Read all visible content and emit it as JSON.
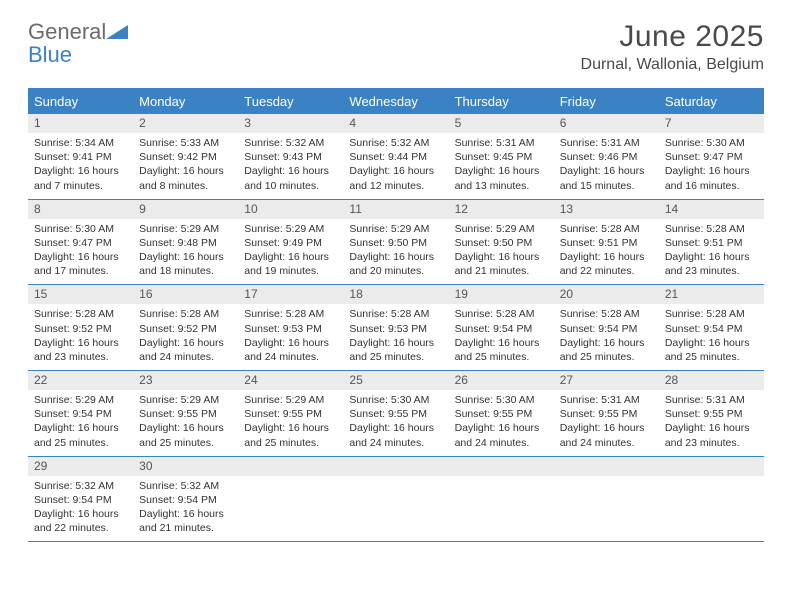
{
  "logo": {
    "word1": "General",
    "word2": "Blue"
  },
  "header": {
    "title": "June 2025",
    "location": "Durnal, Wallonia, Belgium"
  },
  "colors": {
    "accent": "#3b82c4",
    "header_bg": "#3b82c4",
    "daynum_bg": "#ebebeb"
  },
  "weekdays": [
    "Sunday",
    "Monday",
    "Tuesday",
    "Wednesday",
    "Thursday",
    "Friday",
    "Saturday"
  ],
  "weeks": [
    [
      {
        "n": "1",
        "sunrise": "Sunrise: 5:34 AM",
        "sunset": "Sunset: 9:41 PM",
        "day1": "Daylight: 16 hours",
        "day2": "and 7 minutes."
      },
      {
        "n": "2",
        "sunrise": "Sunrise: 5:33 AM",
        "sunset": "Sunset: 9:42 PM",
        "day1": "Daylight: 16 hours",
        "day2": "and 8 minutes."
      },
      {
        "n": "3",
        "sunrise": "Sunrise: 5:32 AM",
        "sunset": "Sunset: 9:43 PM",
        "day1": "Daylight: 16 hours",
        "day2": "and 10 minutes."
      },
      {
        "n": "4",
        "sunrise": "Sunrise: 5:32 AM",
        "sunset": "Sunset: 9:44 PM",
        "day1": "Daylight: 16 hours",
        "day2": "and 12 minutes."
      },
      {
        "n": "5",
        "sunrise": "Sunrise: 5:31 AM",
        "sunset": "Sunset: 9:45 PM",
        "day1": "Daylight: 16 hours",
        "day2": "and 13 minutes."
      },
      {
        "n": "6",
        "sunrise": "Sunrise: 5:31 AM",
        "sunset": "Sunset: 9:46 PM",
        "day1": "Daylight: 16 hours",
        "day2": "and 15 minutes."
      },
      {
        "n": "7",
        "sunrise": "Sunrise: 5:30 AM",
        "sunset": "Sunset: 9:47 PM",
        "day1": "Daylight: 16 hours",
        "day2": "and 16 minutes."
      }
    ],
    [
      {
        "n": "8",
        "sunrise": "Sunrise: 5:30 AM",
        "sunset": "Sunset: 9:47 PM",
        "day1": "Daylight: 16 hours",
        "day2": "and 17 minutes."
      },
      {
        "n": "9",
        "sunrise": "Sunrise: 5:29 AM",
        "sunset": "Sunset: 9:48 PM",
        "day1": "Daylight: 16 hours",
        "day2": "and 18 minutes."
      },
      {
        "n": "10",
        "sunrise": "Sunrise: 5:29 AM",
        "sunset": "Sunset: 9:49 PM",
        "day1": "Daylight: 16 hours",
        "day2": "and 19 minutes."
      },
      {
        "n": "11",
        "sunrise": "Sunrise: 5:29 AM",
        "sunset": "Sunset: 9:50 PM",
        "day1": "Daylight: 16 hours",
        "day2": "and 20 minutes."
      },
      {
        "n": "12",
        "sunrise": "Sunrise: 5:29 AM",
        "sunset": "Sunset: 9:50 PM",
        "day1": "Daylight: 16 hours",
        "day2": "and 21 minutes."
      },
      {
        "n": "13",
        "sunrise": "Sunrise: 5:28 AM",
        "sunset": "Sunset: 9:51 PM",
        "day1": "Daylight: 16 hours",
        "day2": "and 22 minutes."
      },
      {
        "n": "14",
        "sunrise": "Sunrise: 5:28 AM",
        "sunset": "Sunset: 9:51 PM",
        "day1": "Daylight: 16 hours",
        "day2": "and 23 minutes."
      }
    ],
    [
      {
        "n": "15",
        "sunrise": "Sunrise: 5:28 AM",
        "sunset": "Sunset: 9:52 PM",
        "day1": "Daylight: 16 hours",
        "day2": "and 23 minutes."
      },
      {
        "n": "16",
        "sunrise": "Sunrise: 5:28 AM",
        "sunset": "Sunset: 9:52 PM",
        "day1": "Daylight: 16 hours",
        "day2": "and 24 minutes."
      },
      {
        "n": "17",
        "sunrise": "Sunrise: 5:28 AM",
        "sunset": "Sunset: 9:53 PM",
        "day1": "Daylight: 16 hours",
        "day2": "and 24 minutes."
      },
      {
        "n": "18",
        "sunrise": "Sunrise: 5:28 AM",
        "sunset": "Sunset: 9:53 PM",
        "day1": "Daylight: 16 hours",
        "day2": "and 25 minutes."
      },
      {
        "n": "19",
        "sunrise": "Sunrise: 5:28 AM",
        "sunset": "Sunset: 9:54 PM",
        "day1": "Daylight: 16 hours",
        "day2": "and 25 minutes."
      },
      {
        "n": "20",
        "sunrise": "Sunrise: 5:28 AM",
        "sunset": "Sunset: 9:54 PM",
        "day1": "Daylight: 16 hours",
        "day2": "and 25 minutes."
      },
      {
        "n": "21",
        "sunrise": "Sunrise: 5:28 AM",
        "sunset": "Sunset: 9:54 PM",
        "day1": "Daylight: 16 hours",
        "day2": "and 25 minutes."
      }
    ],
    [
      {
        "n": "22",
        "sunrise": "Sunrise: 5:29 AM",
        "sunset": "Sunset: 9:54 PM",
        "day1": "Daylight: 16 hours",
        "day2": "and 25 minutes."
      },
      {
        "n": "23",
        "sunrise": "Sunrise: 5:29 AM",
        "sunset": "Sunset: 9:55 PM",
        "day1": "Daylight: 16 hours",
        "day2": "and 25 minutes."
      },
      {
        "n": "24",
        "sunrise": "Sunrise: 5:29 AM",
        "sunset": "Sunset: 9:55 PM",
        "day1": "Daylight: 16 hours",
        "day2": "and 25 minutes."
      },
      {
        "n": "25",
        "sunrise": "Sunrise: 5:30 AM",
        "sunset": "Sunset: 9:55 PM",
        "day1": "Daylight: 16 hours",
        "day2": "and 24 minutes."
      },
      {
        "n": "26",
        "sunrise": "Sunrise: 5:30 AM",
        "sunset": "Sunset: 9:55 PM",
        "day1": "Daylight: 16 hours",
        "day2": "and 24 minutes."
      },
      {
        "n": "27",
        "sunrise": "Sunrise: 5:31 AM",
        "sunset": "Sunset: 9:55 PM",
        "day1": "Daylight: 16 hours",
        "day2": "and 24 minutes."
      },
      {
        "n": "28",
        "sunrise": "Sunrise: 5:31 AM",
        "sunset": "Sunset: 9:55 PM",
        "day1": "Daylight: 16 hours",
        "day2": "and 23 minutes."
      }
    ],
    [
      {
        "n": "29",
        "sunrise": "Sunrise: 5:32 AM",
        "sunset": "Sunset: 9:54 PM",
        "day1": "Daylight: 16 hours",
        "day2": "and 22 minutes."
      },
      {
        "n": "30",
        "sunrise": "Sunrise: 5:32 AM",
        "sunset": "Sunset: 9:54 PM",
        "day1": "Daylight: 16 hours",
        "day2": "and 21 minutes."
      },
      {
        "empty": true
      },
      {
        "empty": true
      },
      {
        "empty": true
      },
      {
        "empty": true
      },
      {
        "empty": true
      }
    ]
  ]
}
